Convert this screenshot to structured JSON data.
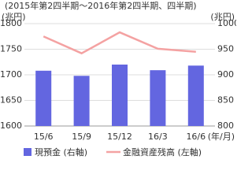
{
  "chart_data": {
    "type": "bar",
    "title": "(2015年第2四半期～2016年第2四半期、四半期)",
    "y_label": "(兆円)",
    "y2_label": "(兆円)",
    "x_label": "(年/月)",
    "categories": [
      "15/6",
      "15/9",
      "15/12",
      "16/3",
      "16/6"
    ],
    "series": [
      {
        "name": "現預金 (右軸)",
        "type": "bar",
        "axis": "y2",
        "color": "#6366e0",
        "values": [
          908,
          898,
          920,
          909,
          918
        ]
      },
      {
        "name": "金融資産残高 (左軸)",
        "type": "line",
        "color": "#f4a2a2",
        "values": [
          1775,
          1742,
          1783,
          1751,
          1745
        ]
      }
    ],
    "ylim": [
      1600,
      1800
    ],
    "yticks": [
      1600,
      1650,
      1700,
      1750,
      1800
    ],
    "y2lim": [
      800,
      1000
    ],
    "y2ticks": [
      800,
      850,
      900,
      950,
      1000
    ],
    "grid": true
  }
}
